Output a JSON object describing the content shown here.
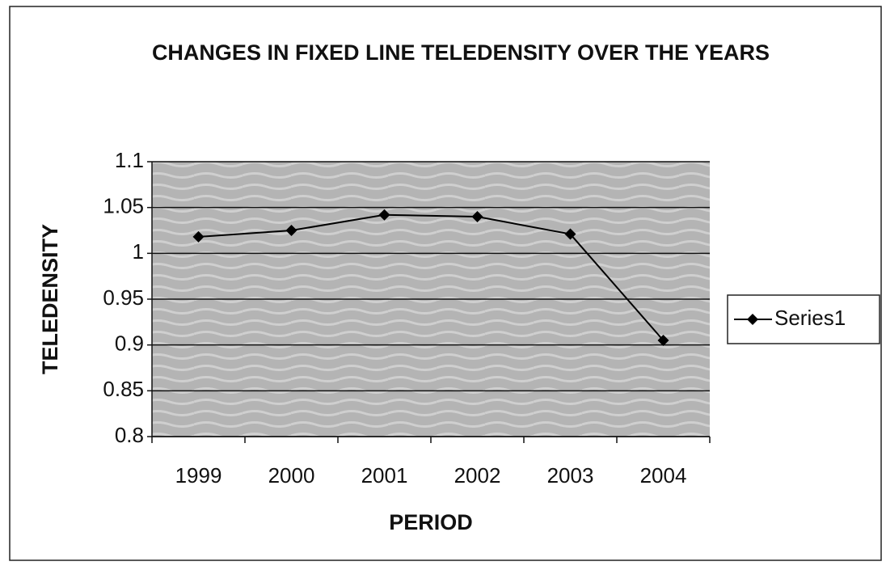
{
  "chart_data": {
    "type": "line",
    "title": "CHANGES IN FIXED LINE TELEDENSITY OVER THE YEARS",
    "xlabel": "PERIOD",
    "ylabel": "TELEDENSITY",
    "categories": [
      "1999",
      "2000",
      "2001",
      "2002",
      "2003",
      "2004"
    ],
    "series": [
      {
        "name": "Series1",
        "color": "#000000",
        "values": [
          1.018,
          1.025,
          1.042,
          1.04,
          1.021,
          0.905
        ]
      }
    ],
    "ylim": [
      0.8,
      1.1
    ],
    "yticks": [
      0.8,
      0.85,
      0.9,
      0.95,
      1,
      1.05,
      1.1
    ],
    "grid": true,
    "legend": "right"
  }
}
